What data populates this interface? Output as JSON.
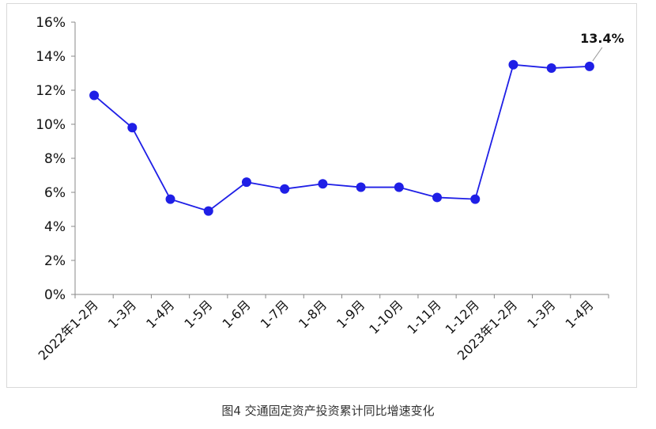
{
  "caption": "图4 交通固定资产投资累计同比增速变化",
  "chart_data": {
    "type": "line",
    "categories": [
      "2022年1-2月",
      "1-3月",
      "1-4月",
      "1-5月",
      "1-6月",
      "1-7月",
      "1-8月",
      "1-9月",
      "1-10月",
      "1-11月",
      "1-12月",
      "2023年1-2月",
      "1-3月",
      "1-4月"
    ],
    "series": [
      {
        "values": [
          11.7,
          9.8,
          5.6,
          4.9,
          6.6,
          6.2,
          6.5,
          6.3,
          6.3,
          5.7,
          5.6,
          13.5,
          13.3,
          13.4
        ],
        "color": "#1f1fe6"
      }
    ],
    "y_ticks": [
      "0%",
      "2%",
      "4%",
      "6%",
      "8%",
      "10%",
      "12%",
      "14%",
      "16%"
    ],
    "ylim": [
      0,
      16
    ],
    "annotations": [
      {
        "index": 13,
        "text": "13.4%"
      }
    ],
    "grid": false,
    "legend": "none",
    "title": "",
    "xlabel": "",
    "ylabel": ""
  }
}
